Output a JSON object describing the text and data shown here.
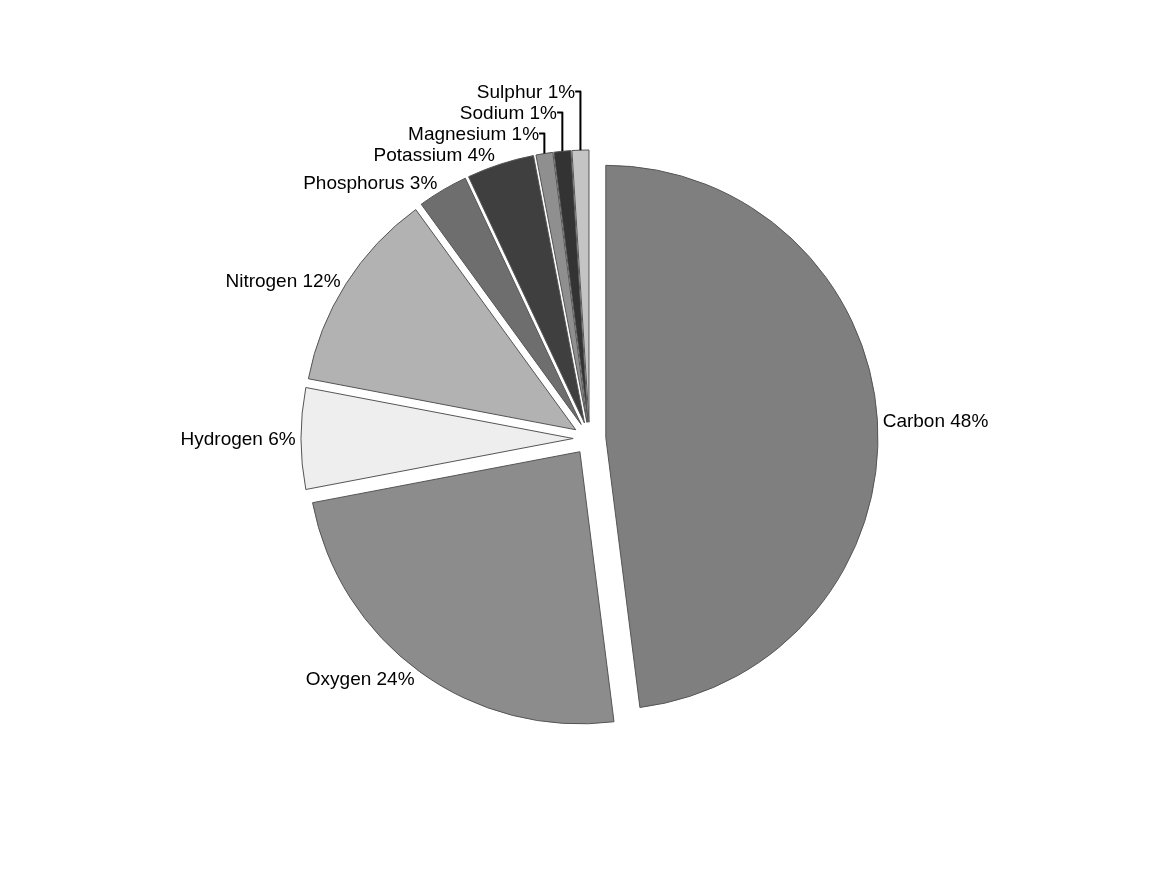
{
  "chart_data": {
    "type": "pie",
    "categories": [
      "Carbon",
      "Oxygen",
      "Hydrogen",
      "Nitrogen",
      "Phosphorus",
      "Potassium",
      "Magnesium",
      "Sodium",
      "Sulphur"
    ],
    "values": [
      48,
      24,
      6,
      12,
      3,
      4,
      1,
      1,
      1
    ],
    "value_labels": [
      "48%",
      "24%",
      "6%",
      "12%",
      "3%",
      "4%",
      "1%",
      "1%",
      "1%"
    ],
    "colors": [
      "#7f7f7f",
      "#8c8c8c",
      "#eeeeee",
      "#b2b2b2",
      "#6e6e6e",
      "#3f3f3f",
      "#8f8f8f",
      "#333333",
      "#c4c4c4"
    ],
    "legend": false
  }
}
